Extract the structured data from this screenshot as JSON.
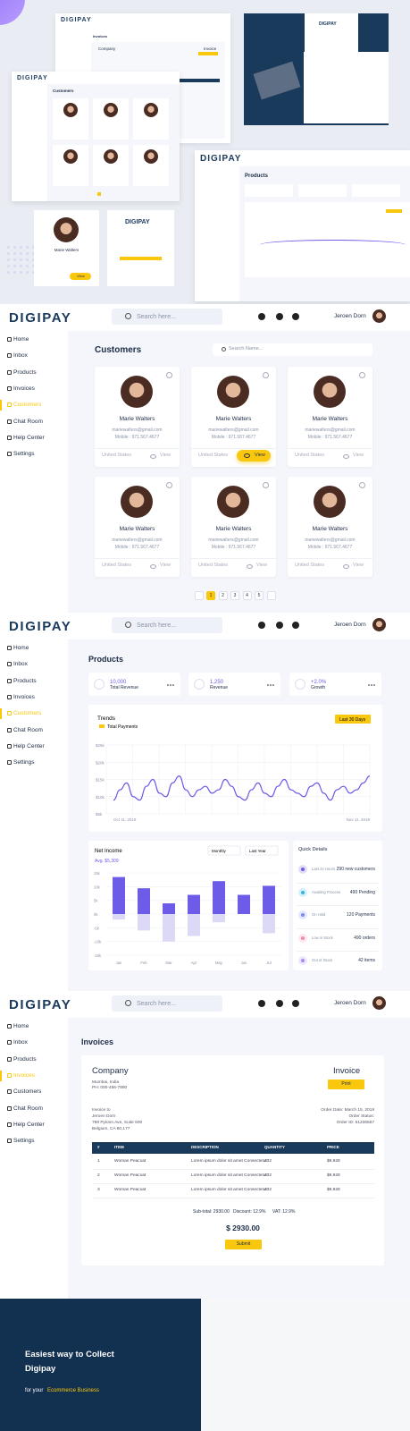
{
  "preview": {
    "dashboard_logo": "DIGIPAY",
    "customers": "Customers",
    "products": "Products",
    "invoices": "Invoices",
    "company": "Company",
    "invoice": "Invoice",
    "name": "Marie Walters",
    "view": "View",
    "login_logo": "DIGIPAY"
  },
  "header": {
    "logo": "DIGIPAY",
    "search": "Search here...",
    "user": "Jeroen Dorn"
  },
  "nav": [
    "Home",
    "Inbox",
    "Products",
    "Invoices",
    "Customers",
    "Chat Room",
    "Help Center",
    "Settings"
  ],
  "customers": {
    "title": "Customers",
    "search": "Search Name...",
    "cards": [
      {
        "name": "Marie Walters",
        "email": "mariewalters@gmail.com",
        "mobile": "Mobile : 971.567.4677",
        "country": "United States",
        "action": "View"
      },
      {
        "name": "Marie Walters",
        "email": "mariewalters@gmail.com",
        "mobile": "Mobile : 971.567.4677",
        "country": "United States",
        "action": "View"
      },
      {
        "name": "Marie Walters",
        "email": "mariewalters@gmail.com",
        "mobile": "Mobile : 971.567.4677",
        "country": "United States",
        "action": "View"
      },
      {
        "name": "Marie Walters",
        "email": "mariewalters@gmail.com",
        "mobile": "Mobile : 971.567.4677",
        "country": "United States",
        "action": "View"
      },
      {
        "name": "Marie Walters",
        "email": "mariewalters@gmail.com",
        "mobile": "Mobile : 971.567.4677",
        "country": "United States",
        "action": "View"
      },
      {
        "name": "Marie Walters",
        "email": "mariewalters@gmail.com",
        "mobile": "Mobile : 971.567.4677",
        "country": "United States",
        "action": "View"
      }
    ],
    "pages": [
      "1",
      "2",
      "3",
      "4",
      "5"
    ]
  },
  "products": {
    "title": "Products",
    "stats": [
      {
        "value": "10,000",
        "label": "Total Revenue"
      },
      {
        "value": "1,250",
        "label": "Revenue"
      },
      {
        "value": "+2.0%",
        "label": "Growth"
      }
    ],
    "trends": {
      "title": "Trends",
      "legend": "Total Payments",
      "range": "Last 30 Days",
      "ylim": [
        5,
        25
      ],
      "yticks": [
        {
          "value": 25,
          "label": "$25k"
        },
        {
          "value": 20,
          "label": "$20k"
        },
        {
          "value": 15,
          "label": "$15k"
        },
        {
          "value": 10,
          "label": "$10k"
        },
        {
          "value": 5,
          "label": "$5k"
        }
      ],
      "x_start": "Oct 11, 2019",
      "x_end": "Nov 11, 2019",
      "values": [
        9,
        12,
        14,
        10,
        9,
        13,
        15,
        11,
        10,
        14,
        16,
        12,
        10,
        12,
        13,
        11,
        12,
        15,
        13,
        10,
        9,
        12,
        14,
        11,
        10,
        13,
        15,
        12,
        11,
        10,
        13,
        14,
        11,
        9,
        12,
        13,
        11,
        12,
        14,
        16
      ]
    },
    "net_income": {
      "title": "Net Income",
      "average": "Avg. $5,309",
      "period": "Monthly",
      "range": "Last Year",
      "ylim": [
        -15,
        15
      ],
      "yticks": [
        {
          "value": 15,
          "label": "15k"
        },
        {
          "value": 10,
          "label": "10k"
        },
        {
          "value": 5,
          "label": "5k"
        },
        {
          "value": 0,
          "label": "0k"
        },
        {
          "value": -5,
          "label": "-5k"
        },
        {
          "value": -10,
          "label": "-10k"
        },
        {
          "value": -15,
          "label": "-15k"
        }
      ],
      "categories": [
        "Jan",
        "Feb",
        "Mar",
        "Apr",
        "May",
        "Jun",
        "Jul"
      ],
      "series": [
        {
          "color": "#6c5ce7",
          "values": [
            13.5,
            9.4,
            3.9,
            7,
            12,
            7,
            10.3
          ]
        },
        {
          "color": "#dcd9f7",
          "values": [
            -2,
            -6,
            -10,
            -8,
            -3,
            0,
            -7
          ]
        }
      ]
    },
    "quick_details": {
      "title": "Quick Details",
      "items": [
        {
          "label": "Last 24 Hours",
          "value": "290 new customers",
          "color": "#6c5ce7"
        },
        {
          "label": "Awaiting Process",
          "value": "490 Pending",
          "color": "#33b5e5"
        },
        {
          "label": "On Hold",
          "value": "120 Payments",
          "color": "#7b8cf5"
        },
        {
          "label": "Low in Stock",
          "value": "490 orders",
          "color": "#f58bb0"
        },
        {
          "label": "Out of Stock",
          "value": "42 items",
          "color": "#a98bf5"
        }
      ]
    }
  },
  "invoices": {
    "title": "Invoices",
    "company": "Company",
    "address": "Mumbai, India",
    "phone": "PH: 000-456-7890",
    "heading": "Invoice",
    "print": "Print",
    "bill_to": [
      "Invoice to",
      "Jeroen Dorn",
      "798 Pylonn Ave, Suite 600",
      "Belgium, CA 80,177"
    ],
    "order": [
      "Order Date: March 15, 2019",
      "Order Status:",
      "Order ID: 51236567"
    ],
    "columns": [
      "#",
      "ITEM",
      "DESCRIPTION",
      "QUANTITY",
      "PRICE"
    ],
    "rows": [
      [
        "1",
        "Woman Peacoat",
        "Lorem ipsum dolor sit amet Consectetur",
        "432",
        "$9,928"
      ],
      [
        "2",
        "Woman Peacoat",
        "Lorem ipsum dolor sit amet Consectetur",
        "432",
        "$9,928"
      ],
      [
        "3",
        "Woman Peacoat",
        "Lorem ipsum dolor sit amet Consectetur",
        "432",
        "$9,928"
      ]
    ],
    "subtotal": "Sub-total: 2930.00",
    "discount": "Discount: 12.9%",
    "vat": "VAT: 12.9%",
    "total": "$ 2930.00",
    "submit": "Submit"
  },
  "footer": {
    "line1": "Easiest way to Collect",
    "line2": "Digipay",
    "prefix": "for your",
    "highlight": "Ecommerce Business"
  }
}
